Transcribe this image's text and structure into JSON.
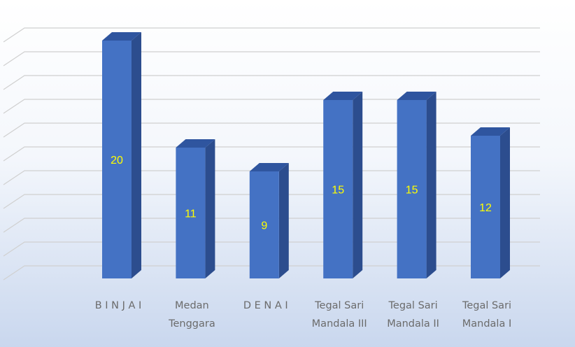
{
  "chart_data": {
    "type": "bar3d",
    "categories": [
      "B I N J A I",
      "Medan Tenggara",
      "D E N A I",
      "Tegal Sari Mandala III",
      "Tegal Sari Mandala II",
      "Tegal Sari Mandala I"
    ],
    "values": [
      20,
      11,
      9,
      15,
      15,
      12
    ],
    "color": "#4472c4",
    "ylim": [
      0,
      20
    ],
    "yticks": [
      0,
      2,
      4,
      6,
      8,
      10,
      12,
      14,
      16,
      18,
      20
    ],
    "grid": true
  }
}
